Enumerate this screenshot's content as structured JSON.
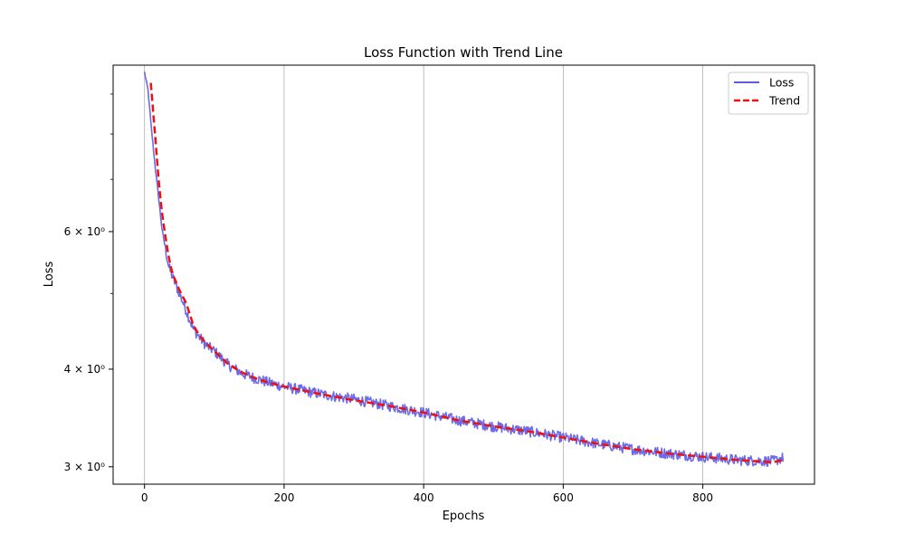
{
  "chart_data": {
    "type": "line",
    "title": "Loss Function with Trend Line",
    "xlabel": "Epochs",
    "ylabel": "Loss",
    "y_scale": "log",
    "xlim": [
      -45,
      960
    ],
    "ylim": [
      2.85,
      9.8
    ],
    "grid": "vertical lines at major x ticks",
    "legend_position": "top-right",
    "x_ticks": [
      0,
      200,
      400,
      600,
      800
    ],
    "x_tick_labels": [
      "0",
      "200",
      "400",
      "600",
      "800"
    ],
    "y_major_ticks": [
      3,
      4,
      6
    ],
    "y_major_tick_labels": [
      "3 × 10⁰",
      "4 × 10⁰",
      "6 × 10⁰"
    ],
    "y_minor_ticks": [
      5,
      7,
      8,
      9
    ],
    "series": [
      {
        "name": "Loss",
        "color": "#5b5be6",
        "style": "solid",
        "x": [
          0,
          5,
          10,
          15,
          20,
          25,
          30,
          35,
          40,
          50,
          60,
          70,
          80,
          90,
          100,
          120,
          140,
          160,
          180,
          200,
          250,
          300,
          350,
          400,
          450,
          500,
          550,
          600,
          650,
          700,
          750,
          800,
          850,
          900,
          915
        ],
        "y": [
          9.6,
          9.1,
          8.1,
          7.3,
          6.65,
          6.05,
          5.7,
          5.4,
          5.25,
          5.0,
          4.75,
          4.5,
          4.38,
          4.28,
          4.22,
          4.05,
          3.95,
          3.89,
          3.84,
          3.8,
          3.72,
          3.66,
          3.59,
          3.52,
          3.44,
          3.38,
          3.33,
          3.27,
          3.21,
          3.16,
          3.12,
          3.09,
          3.06,
          3.05,
          3.08
        ],
        "noise": "small high-frequency fluctuations along the curve"
      },
      {
        "name": "Trend",
        "color": "#ee1111",
        "style": "dashed",
        "x": [
          9,
          15,
          20,
          25,
          30,
          35,
          40,
          50,
          60,
          70,
          80,
          90,
          100,
          120,
          140,
          160,
          180,
          200,
          250,
          300,
          350,
          400,
          450,
          500,
          550,
          600,
          650,
          700,
          750,
          800,
          850,
          900,
          915
        ],
        "y": [
          9.3,
          8.0,
          7.0,
          6.35,
          5.9,
          5.55,
          5.3,
          5.05,
          4.85,
          4.55,
          4.4,
          4.3,
          4.22,
          4.06,
          3.96,
          3.89,
          3.84,
          3.8,
          3.72,
          3.65,
          3.59,
          3.52,
          3.44,
          3.38,
          3.33,
          3.27,
          3.21,
          3.16,
          3.12,
          3.09,
          3.06,
          3.04,
          3.06
        ]
      }
    ],
    "legend": [
      {
        "label": "Loss",
        "color": "#5b5be6",
        "style": "solid"
      },
      {
        "label": "Trend",
        "color": "#ee1111",
        "style": "dashed"
      }
    ]
  }
}
